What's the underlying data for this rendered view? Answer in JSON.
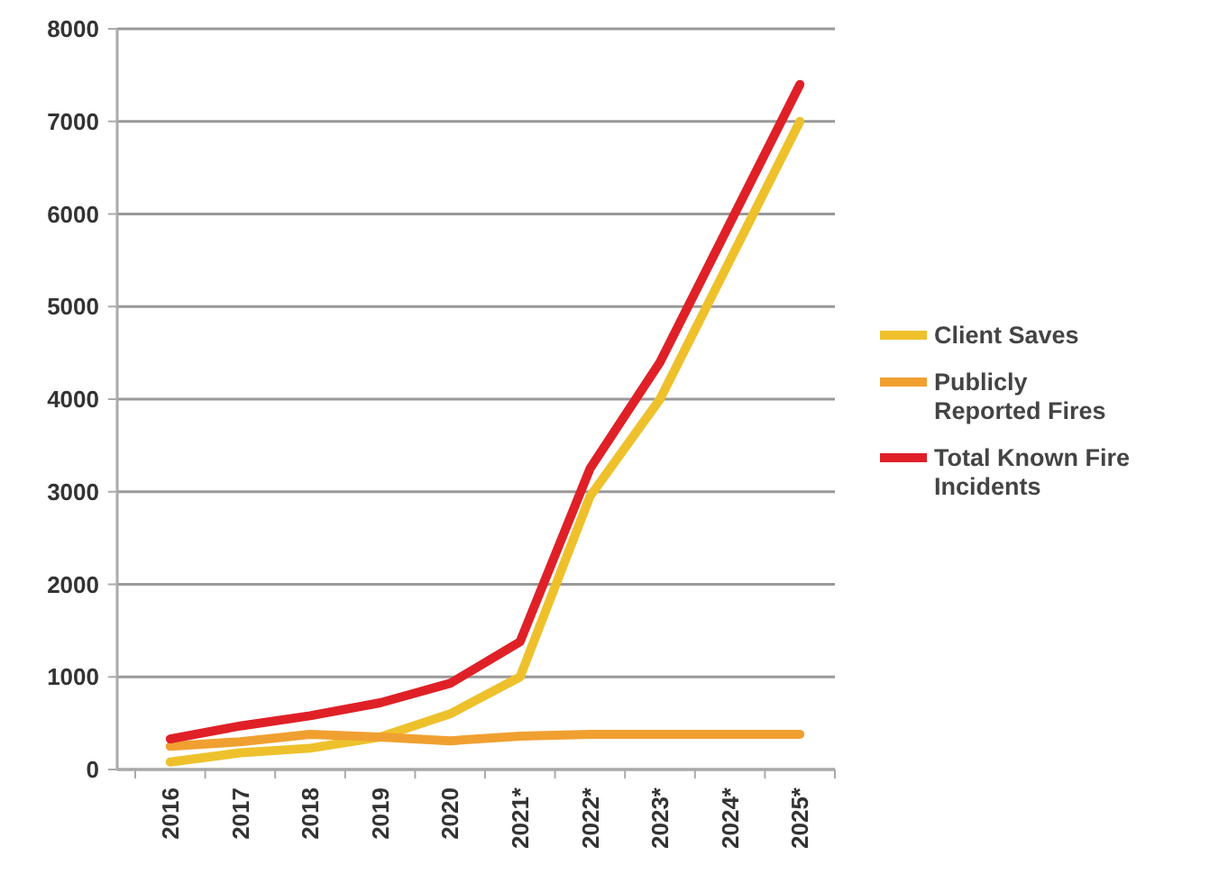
{
  "chart_data": {
    "type": "line",
    "categories": [
      "2016",
      "2017",
      "2018",
      "2019",
      "2020",
      "2021*",
      "2022*",
      "2023*",
      "2024*",
      "2025*"
    ],
    "series": [
      {
        "name": "Client Saves",
        "color": "#eec12c",
        "values": [
          80,
          180,
          230,
          350,
          600,
          1000,
          2950,
          4000,
          5500,
          7000
        ]
      },
      {
        "name": "Publicly Reported Fires",
        "color": "#f0a030",
        "values": [
          250,
          300,
          380,
          350,
          310,
          360,
          380,
          380,
          380,
          380
        ]
      },
      {
        "name": "Total Known Fire Incidents",
        "color": "#e02027",
        "values": [
          330,
          470,
          580,
          720,
          930,
          1380,
          3250,
          4400,
          5900,
          7400
        ]
      }
    ],
    "ylim": [
      0,
      8000
    ],
    "yticks": [
      0,
      1000,
      2000,
      3000,
      4000,
      5000,
      6000,
      7000,
      8000
    ],
    "grid": "y",
    "legend": "right",
    "marker": "none",
    "line_style": "solid"
  }
}
